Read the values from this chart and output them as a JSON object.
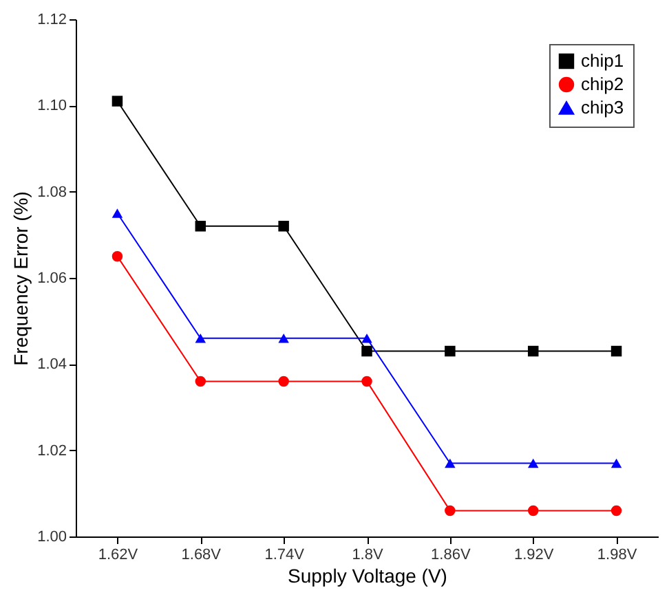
{
  "chart_data": {
    "type": "line",
    "xlabel": "Supply Voltage (V)",
    "ylabel": "Frequency Error (%)",
    "categories": [
      "1.62V",
      "1.68V",
      "1.74V",
      "1.8V",
      "1.86V",
      "1.92V",
      "1.98V"
    ],
    "series": [
      {
        "name": "chip1",
        "color": "#000000",
        "marker": "square",
        "values": [
          1.101,
          1.072,
          1.072,
          1.043,
          1.043,
          1.043,
          1.043
        ]
      },
      {
        "name": "chip2",
        "color": "#ff0000",
        "marker": "circle",
        "values": [
          1.065,
          1.036,
          1.036,
          1.036,
          1.006,
          1.006,
          1.006
        ]
      },
      {
        "name": "chip3",
        "color": "#0000ff",
        "marker": "triangle",
        "values": [
          1.075,
          1.046,
          1.046,
          1.046,
          1.017,
          1.017,
          1.017
        ]
      }
    ],
    "ylim": [
      1.0,
      1.12
    ],
    "yticks": [
      {
        "value": 1,
        "label": "1.00"
      },
      1.02,
      1.04,
      1.06,
      1.08,
      {
        "value": 1.1,
        "label": "1.10"
      },
      1.12
    ],
    "grid": false,
    "legend": "top right",
    "line_style": "solid"
  }
}
